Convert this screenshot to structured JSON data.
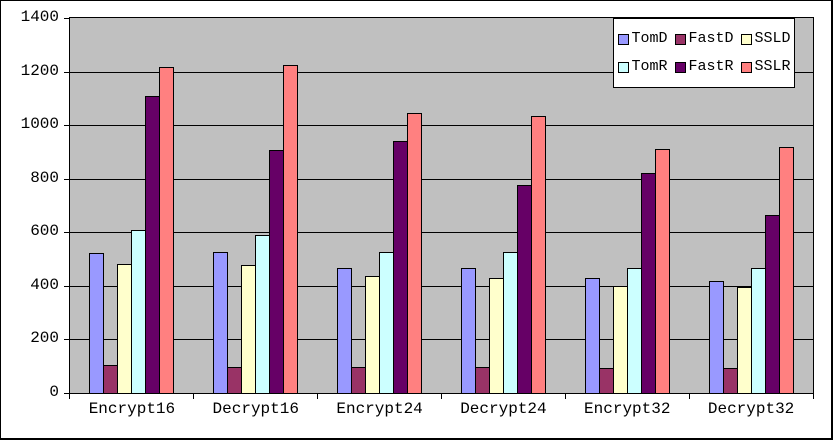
{
  "chart_data": {
    "type": "bar",
    "title": "",
    "categories": [
      "Encrypt16",
      "Decrypt16",
      "Encrypt24",
      "Decrypt24",
      "Encrypt32",
      "Decrypt32"
    ],
    "series": [
      {
        "name": "TomD",
        "color": "#9999FF",
        "values": [
          522,
          528,
          468,
          465,
          428,
          420
        ]
      },
      {
        "name": "FastD",
        "color": "#993366",
        "values": [
          103,
          98,
          98,
          97,
          95,
          93
        ]
      },
      {
        "name": "SSLD",
        "color": "#FFFFCC",
        "values": [
          480,
          477,
          437,
          430,
          398,
          395
        ]
      },
      {
        "name": "TomR",
        "color": "#CCFFFF",
        "values": [
          607,
          590,
          525,
          528,
          467,
          465
        ]
      },
      {
        "name": "FastR",
        "color": "#660066",
        "values": [
          1110,
          907,
          942,
          775,
          822,
          665
        ]
      },
      {
        "name": "SSLR",
        "color": "#FF8080",
        "values": [
          1218,
          1225,
          1045,
          1033,
          910,
          918
        ]
      }
    ],
    "xlabel": "",
    "ylabel": "",
    "ylim": [
      0,
      1400
    ],
    "ytick_interval": 200,
    "ytick_labels": [
      "1400",
      "1200",
      "1000",
      "800",
      "600",
      "400",
      "200",
      "0"
    ],
    "grid": "horizontal",
    "grid_color": "#000000",
    "plot_background": "#C0C0C0",
    "chart_background": "#FFFFFF",
    "legend_position": "top-right",
    "legend_layout": "2 rows x 3 columns"
  }
}
